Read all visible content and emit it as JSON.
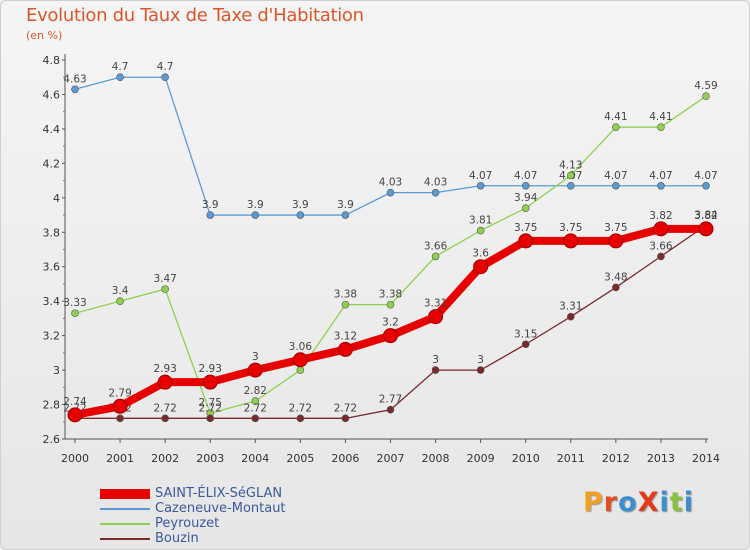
{
  "header": {
    "title": "Evolution du Taux de Taxe d'Habitation",
    "subtitle": "(en %)"
  },
  "logo": {
    "text": "ProXiti",
    "colors": [
      "#f0a020",
      "#e05020",
      "#3b8ed0",
      "#e23a1a",
      "#3b8ed0",
      "#88c040",
      "#3b8ed0"
    ]
  },
  "chart_data": {
    "type": "line",
    "title": "Evolution du Taux de Taxe d'Habitation",
    "subtitle": "(en %)",
    "xlabel": "",
    "ylabel": "",
    "x": [
      "2000",
      "2001",
      "2002",
      "2003",
      "2004",
      "2005",
      "2006",
      "2007",
      "2008",
      "2009",
      "2010",
      "2011",
      "2012",
      "2013",
      "2014"
    ],
    "ylim": [
      2.6,
      4.8
    ],
    "yticks": [
      "2.6",
      "2.8",
      "3",
      "3.2",
      "3.4",
      "3.6",
      "3.8",
      "4",
      "4.2",
      "4.4",
      "4.6",
      "4.8"
    ],
    "grid": false,
    "legend_position": "bottom-left",
    "series": [
      {
        "name": "SAINT-ÉLIX-SéGLAN",
        "color": "#e60000",
        "values": [
          2.74,
          2.79,
          2.93,
          2.93,
          3.0,
          3.06,
          3.12,
          3.2,
          3.31,
          3.6,
          3.75,
          3.75,
          3.75,
          3.82,
          3.82
        ],
        "labels": [
          "2.74",
          "2.79",
          "2.93",
          "2.93",
          "3",
          "3.06",
          "3.12",
          "3.2",
          "3.31",
          "3.6",
          "3.75",
          "3.75",
          "3.75",
          "3.82",
          "3.82"
        ]
      },
      {
        "name": "Cazeneuve-Montaut",
        "color": "#5b9bd5",
        "values": [
          4.63,
          4.7,
          4.7,
          3.9,
          3.9,
          3.9,
          3.9,
          4.03,
          4.03,
          4.07,
          4.07,
          4.07,
          4.07,
          4.07,
          4.07
        ],
        "labels": [
          "4.63",
          "4.7",
          "4.7",
          "3.9",
          "3.9",
          "3.9",
          "3.9",
          "4.03",
          "4.03",
          "4.07",
          "4.07",
          "4.07",
          "4.07",
          "4.07",
          "4.07"
        ]
      },
      {
        "name": "Peyrouzet",
        "color": "#8fd14f",
        "values": [
          3.33,
          3.4,
          3.47,
          2.75,
          2.82,
          3.0,
          3.38,
          3.38,
          3.66,
          3.81,
          3.94,
          4.13,
          4.41,
          4.41,
          4.59
        ],
        "labels": [
          "3.33",
          "3.4",
          "3.47",
          "2.75",
          "2.82",
          "3",
          "3.38",
          "3.38",
          "3.66",
          "3.81",
          "3.94",
          "4.13",
          "4.41",
          "4.41",
          "4.59"
        ]
      },
      {
        "name": "Bouzin",
        "color": "#7a2a2a",
        "values": [
          2.72,
          2.72,
          2.72,
          2.72,
          2.72,
          2.72,
          2.72,
          2.77,
          3.0,
          3.0,
          3.15,
          3.31,
          3.48,
          3.66,
          3.84
        ],
        "labels": [
          "2.72",
          "2.72",
          "2.72",
          "2.72",
          "2.72",
          "2.72",
          "2.72",
          "2.77",
          "3",
          "3",
          "3.15",
          "3.31",
          "3.48",
          "3.66",
          "3.84"
        ]
      }
    ]
  }
}
